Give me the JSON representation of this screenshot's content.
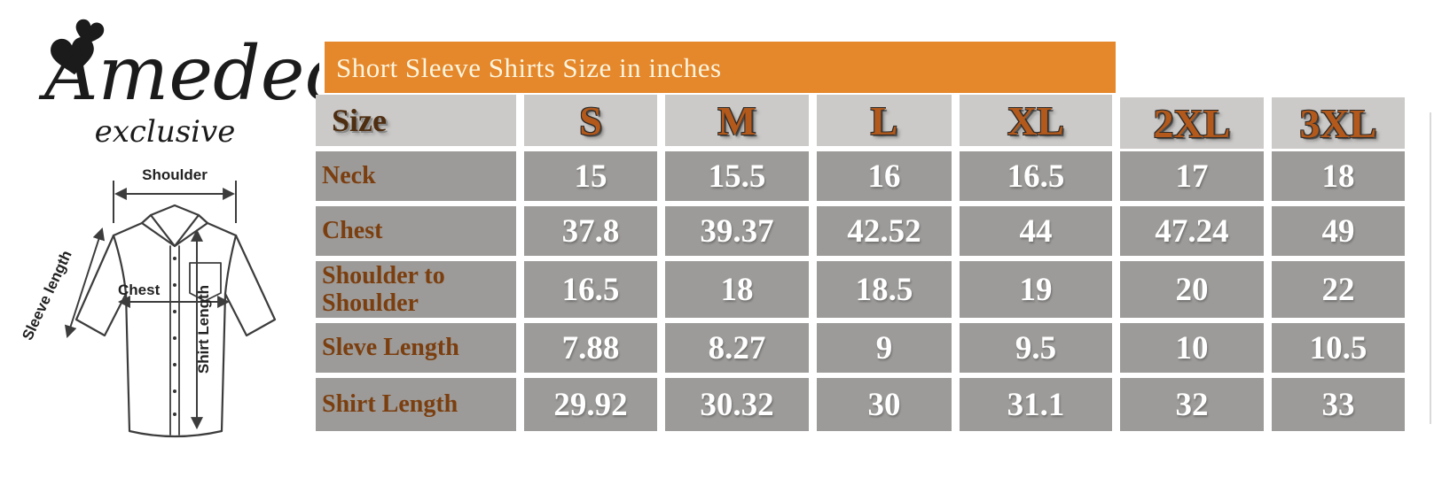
{
  "brand": {
    "name": "Amedeo",
    "tagline": "exclusive"
  },
  "diagram": {
    "shoulder_label": "Shoulder",
    "sleeve_length_label": "Sleeve length",
    "chest_label": "Chest",
    "shirt_length_label": "Shirt Length"
  },
  "banner": {
    "title": "Short Sleeve Shirts Size in inches"
  },
  "chart_data": {
    "type": "table",
    "title": "Short Sleeve Shirts Size in inches",
    "units": "inches",
    "columns": [
      "Size",
      "S",
      "M",
      "L",
      "XL",
      "2XL",
      "3XL"
    ],
    "rows": [
      [
        "Neck",
        "15",
        "15.5",
        "16",
        "16.5",
        "17",
        "18"
      ],
      [
        "Chest",
        "37.8",
        "39.37",
        "42.52",
        "44",
        "47.24",
        "49"
      ],
      [
        "Shoulder to Shoulder",
        "16.5",
        "18",
        "18.5",
        "19",
        "20",
        "22"
      ],
      [
        "Sleve Length",
        "7.88",
        "8.27",
        "9",
        "9.5",
        "10",
        "10.5"
      ],
      [
        "Shirt Length",
        "29.92",
        "30.32",
        "30",
        "31.1",
        "32",
        "33"
      ]
    ]
  },
  "colors": {
    "banner_bg": "#E5872B",
    "banner_text": "#FCF5DE",
    "header_cell_bg": "#CBCAC8",
    "header_letter": "#B2591B",
    "size_label": "#4E2D10",
    "data_cell_bg": "#9C9B99",
    "row_label": "#7B3E0F",
    "value_text": "#FFFFFF",
    "logo_ink": "#1B1B1B",
    "line_ink": "#3C3C3C"
  }
}
